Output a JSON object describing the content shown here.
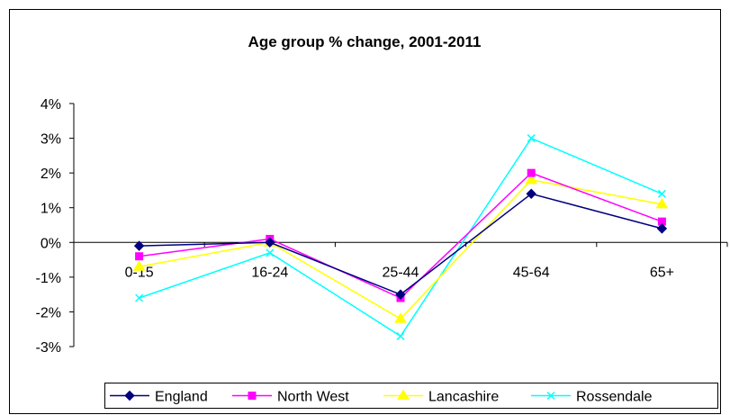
{
  "chart_data": {
    "type": "line",
    "title": "Age group % change, 2001-2011",
    "xlabel": "",
    "ylabel": "",
    "categories": [
      "0-15",
      "16-24",
      "25-44",
      "45-64",
      "65+"
    ],
    "y_ticks": [
      "4%",
      "3%",
      "2%",
      "1%",
      "0%",
      "-1%",
      "-2%",
      "-3%"
    ],
    "ylim": [
      -3,
      4
    ],
    "grid": false,
    "legend_position": "bottom",
    "series": [
      {
        "name": "England",
        "color": "#000080",
        "marker": "diamond",
        "values": [
          -0.1,
          0.0,
          -1.5,
          1.4,
          0.4
        ]
      },
      {
        "name": "North West",
        "color": "#ff00ff",
        "marker": "square",
        "values": [
          -0.4,
          0.1,
          -1.6,
          2.0,
          0.6
        ]
      },
      {
        "name": "Lancashire",
        "color": "#ffff00",
        "marker": "triangle",
        "values": [
          -0.7,
          0.0,
          -2.2,
          1.8,
          1.1
        ]
      },
      {
        "name": "Rossendale",
        "color": "#00ffff",
        "marker": "x",
        "values": [
          -1.6,
          -0.3,
          -2.7,
          3.0,
          1.4
        ]
      }
    ]
  }
}
